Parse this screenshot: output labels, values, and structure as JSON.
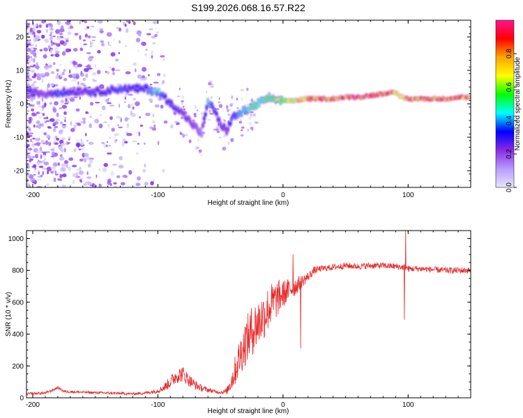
{
  "title": "S199.2026.068.16.57.R22",
  "chart_data": [
    {
      "type": "heatmap",
      "name": "spectrogram",
      "xlabel": "Height of straight line (km)",
      "ylabel": "Frequency (Hz)",
      "xlim": [
        -205,
        150
      ],
      "ylim": [
        -25,
        25
      ],
      "xticks": [
        -200,
        -100,
        0,
        100
      ],
      "yticks": [
        -20,
        -10,
        0,
        10,
        20
      ],
      "ridge_x": [
        -205,
        -190,
        -180,
        -170,
        -160,
        -150,
        -140,
        -130,
        -120,
        -110,
        -105,
        -100,
        -95,
        -90,
        -85,
        -80,
        -75,
        -70,
        -65,
        -60,
        -55,
        -50,
        -45,
        -40,
        -35,
        -30,
        -25,
        -20,
        -15,
        -10,
        -5,
        0,
        10,
        20,
        30,
        40,
        50,
        60,
        70,
        80,
        85,
        90,
        95,
        100,
        110,
        120,
        130,
        140,
        150
      ],
      "ridge_y": [
        3.5,
        3,
        3.5,
        3.5,
        4,
        3.5,
        4,
        4.5,
        4.5,
        4.5,
        4,
        3.5,
        2,
        0,
        -1,
        -3,
        -5,
        -7,
        -9,
        1,
        -2,
        -6,
        -8,
        -4,
        -3,
        -2,
        -1,
        0,
        1,
        2,
        0.5,
        1,
        1,
        1.5,
        1.5,
        1.5,
        2,
        2,
        2.5,
        3,
        3.5,
        3,
        2,
        1.5,
        1.5,
        1.5,
        1.5,
        2,
        2
      ],
      "ridge_amp": [
        0.3,
        0.2,
        0.35,
        0.3,
        0.25,
        0.3,
        0.3,
        0.35,
        0.3,
        0.35,
        0.4,
        0.45,
        0.35,
        0.3,
        0.3,
        0.25,
        0.25,
        0.2,
        0.15,
        0.45,
        0.3,
        0.25,
        0.25,
        0.35,
        0.4,
        0.45,
        0.5,
        0.5,
        0.5,
        0.55,
        0.6,
        0.6,
        0.7,
        0.8,
        0.85,
        0.8,
        0.85,
        0.9,
        0.9,
        0.85,
        0.8,
        0.75,
        0.75,
        0.8,
        0.85,
        0.85,
        0.8,
        0.8,
        0.75
      ],
      "colorbar": {
        "label": "Normalized spectral amplitude",
        "range": [
          0,
          1
        ],
        "ticks": [
          "0.0",
          "0.2",
          "0.4",
          "0.6",
          "0.8"
        ],
        "colors": [
          "#e6e6fa",
          "#b89bff",
          "#8a2be2",
          "#0000ff",
          "#00ffff",
          "#00ff00",
          "#ffff00",
          "#ffa500",
          "#ff0000",
          "#ff1493"
        ]
      }
    },
    {
      "type": "line",
      "name": "snr",
      "xlabel": "Height of straight line (km)",
      "ylabel": "SNR (10 * v/v)",
      "xlim": [
        -205,
        150
      ],
      "ylim": [
        0,
        1050
      ],
      "xticks": [
        -200,
        -100,
        0,
        100
      ],
      "yticks": [
        0,
        200,
        400,
        600,
        800,
        1000
      ],
      "color": "#e62a2a",
      "trend_x": [
        -205,
        -190,
        -185,
        -180,
        -175,
        -160,
        -140,
        -120,
        -110,
        -100,
        -95,
        -90,
        -85,
        -80,
        -75,
        -70,
        -65,
        -60,
        -55,
        -50,
        -45,
        -40,
        -35,
        -30,
        -25,
        -20,
        -15,
        -10,
        -5,
        0,
        5,
        10,
        15,
        20,
        25,
        30,
        40,
        50,
        60,
        70,
        80,
        90,
        95,
        98,
        100,
        110,
        120,
        130,
        140,
        150
      ],
      "trend_y": [
        25,
        30,
        45,
        65,
        40,
        35,
        30,
        25,
        30,
        45,
        65,
        100,
        140,
        150,
        110,
        80,
        60,
        50,
        40,
        35,
        40,
        130,
        250,
        350,
        420,
        470,
        520,
        580,
        620,
        650,
        680,
        700,
        730,
        760,
        800,
        810,
        820,
        830,
        825,
        830,
        830,
        825,
        820,
        820,
        810,
        810,
        805,
        800,
        800,
        800
      ],
      "noise": [
        8,
        8,
        8,
        8,
        8,
        8,
        8,
        8,
        10,
        15,
        25,
        40,
        50,
        50,
        40,
        30,
        20,
        15,
        12,
        10,
        20,
        80,
        120,
        150,
        160,
        160,
        150,
        140,
        120,
        90,
        70,
        60,
        40,
        30,
        25,
        20,
        20,
        20,
        20,
        20,
        20,
        20,
        20,
        20,
        20,
        20,
        20,
        20,
        20,
        20
      ],
      "spikes": [
        {
          "x": 98,
          "y": 1050
        },
        {
          "x": 97,
          "y": 490
        },
        {
          "x": 8,
          "y": 900
        },
        {
          "x": 14,
          "y": 310
        }
      ]
    }
  ]
}
